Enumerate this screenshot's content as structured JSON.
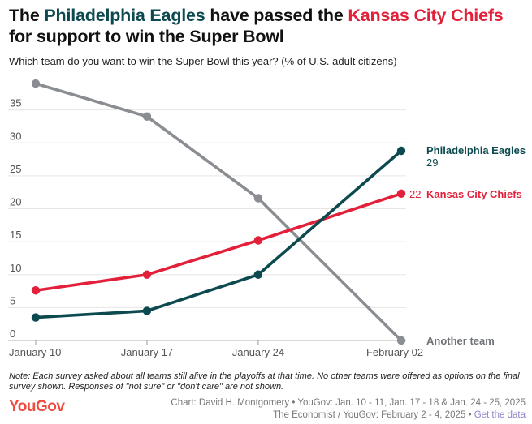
{
  "title": {
    "part1": "The ",
    "team1": "Philadelphia Eagles",
    "part2": " have passed the ",
    "team2": "Kansas City Chiefs",
    "part3": " for support to win the Super Bowl"
  },
  "subtitle": "Which team do you want to win the Super Bowl this year? (% of U.S. adult citizens)",
  "note": "Note: Each survey asked about all teams still alive in the playoffs at that time. No other teams were offered as options on the final survey shown. Responses of \"not sure\" or \"don't care\" are not shown.",
  "footer": {
    "logo": "YouGov",
    "credit_line1": "Chart: David H. Montgomery • YouGov: Jan. 10 - 11, Jan. 17 - 18 & Jan. 24 - 25, 2025",
    "credit_line2": "The Economist / YouGov: February 2 - 4, 2025 • ",
    "get_data": "Get the data"
  },
  "colors": {
    "eagles": "#0d4a4f",
    "chiefs": "#e2203a",
    "another": "#8a8d92",
    "grid": "#e6e6e6"
  },
  "chart_data": {
    "type": "line",
    "x": [
      "January 10",
      "January 17",
      "January 24",
      "February 02"
    ],
    "x_days": [
      0,
      7,
      14,
      23
    ],
    "ylim": [
      0,
      40
    ],
    "yticks": [
      0,
      5,
      10,
      15,
      20,
      25,
      30,
      35
    ],
    "grid": true,
    "series": [
      {
        "name": "Another team",
        "color": "#8a8d92",
        "values": [
          39,
          34,
          21.6,
          0
        ],
        "end_label": ""
      },
      {
        "name": "Kansas City Chiefs",
        "color": "#e2203a",
        "values": [
          7.6,
          10,
          15.2,
          22.3
        ],
        "end_label": "22"
      },
      {
        "name": "Philadelphia Eagles",
        "color": "#0d4a4f",
        "values": [
          3.5,
          4.5,
          10,
          28.8
        ],
        "end_label": "29"
      }
    ]
  }
}
